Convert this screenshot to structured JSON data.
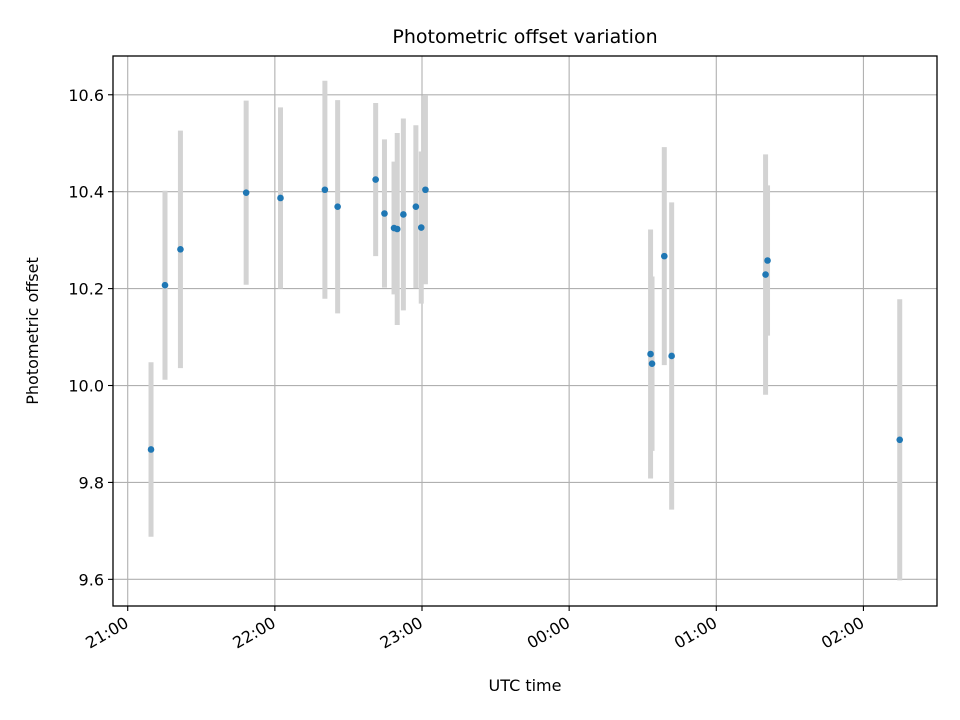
{
  "chart_data": {
    "type": "scatter",
    "title": "Photometric offset variation",
    "xlabel": "UTC time",
    "ylabel": "Photometric offset",
    "x_is_time": true,
    "xlim": [
      "20:54",
      "02:30"
    ],
    "ylim": [
      9.545,
      10.68
    ],
    "xticks": [
      "21:00",
      "22:00",
      "23:00",
      "00:00",
      "01:00",
      "02:00"
    ],
    "yticks": [
      9.6,
      9.8,
      10.0,
      10.2,
      10.4,
      10.6
    ],
    "ytick_labels": [
      "9.6",
      "9.8",
      "10.0",
      "10.2",
      "10.4",
      "10.6"
    ],
    "grid": true,
    "colors": {
      "points": "#1f77b4",
      "errorbars": "#d3d3d3",
      "grid": "#b0b0b0"
    },
    "points": [
      {
        "t": "21:09.5",
        "y": 9.868,
        "err": 0.18
      },
      {
        "t": "21:15.2",
        "y": 10.207,
        "err": 0.195
      },
      {
        "t": "21:21.5",
        "y": 10.281,
        "err": 0.245
      },
      {
        "t": "21:48.3",
        "y": 10.398,
        "err": 0.19
      },
      {
        "t": "22:02.3",
        "y": 10.387,
        "err": 0.187
      },
      {
        "t": "22:20.4",
        "y": 10.404,
        "err": 0.225
      },
      {
        "t": "22:25.6",
        "y": 10.369,
        "err": 0.22
      },
      {
        "t": "22:41.1",
        "y": 10.425,
        "err": 0.158
      },
      {
        "t": "22:44.7",
        "y": 10.355,
        "err": 0.153
      },
      {
        "t": "22:48.6",
        "y": 10.325,
        "err": 0.137
      },
      {
        "t": "22:49.9",
        "y": 10.323,
        "err": 0.198
      },
      {
        "t": "22:52.4",
        "y": 10.353,
        "err": 0.198
      },
      {
        "t": "22:57.5",
        "y": 10.369,
        "err": 0.168
      },
      {
        "t": "22:59.7",
        "y": 10.326,
        "err": 0.157
      },
      {
        "t": "23:01.4",
        "y": 10.404,
        "err": 0.195
      },
      {
        "t": "00:33.2",
        "y": 10.065,
        "err": 0.257
      },
      {
        "t": "00:33.8",
        "y": 10.045,
        "err": 0.18
      },
      {
        "t": "00:38.8",
        "y": 10.267,
        "err": 0.225
      },
      {
        "t": "00:41.8",
        "y": 10.061,
        "err": 0.317
      },
      {
        "t": "01:20.1",
        "y": 10.229,
        "err": 0.248
      },
      {
        "t": "01:20.9",
        "y": 10.258,
        "err": 0.155
      },
      {
        "t": "02:14.8",
        "y": 9.888,
        "err": 0.29
      }
    ]
  }
}
